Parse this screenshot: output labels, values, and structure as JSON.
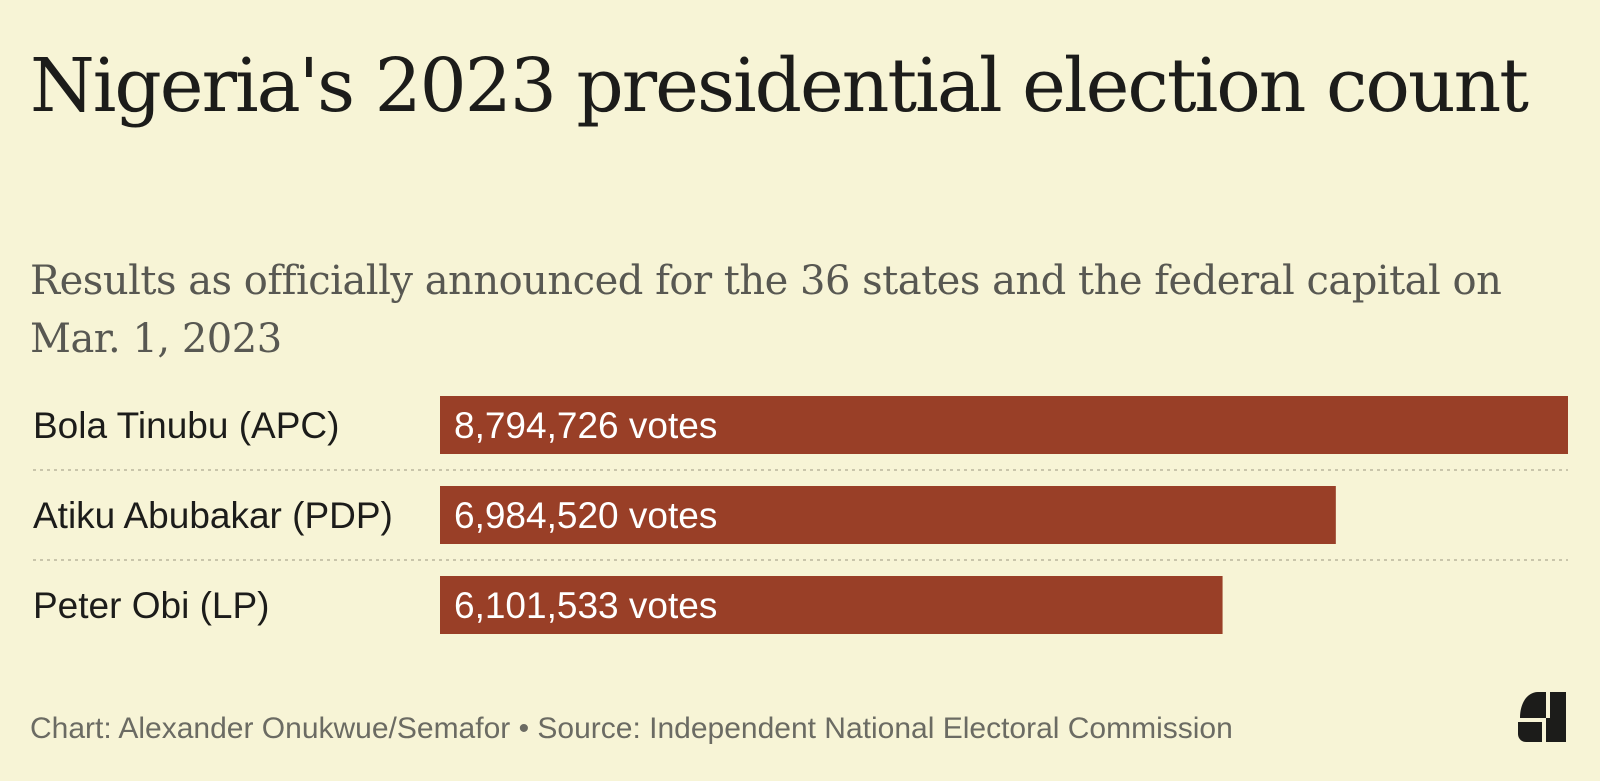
{
  "chart_data": {
    "type": "bar",
    "orientation": "horizontal",
    "title": "Nigeria's 2023 presidential election count",
    "subtitle": "Results as officially announced for the 36 states and the federal capital on Mar. 1, 2023",
    "categories": [
      "Bola Tinubu (APC)",
      "Atiku Abubakar (PDP)",
      "Peter Obi (LP)"
    ],
    "values": [
      8794726,
      6984520,
      6101533
    ],
    "value_labels": [
      "8,794,726 votes",
      "6,984,520 votes",
      "6,101,533 votes"
    ],
    "xlim": [
      0,
      8794726
    ],
    "grid": false,
    "bar_color": "#993f27"
  },
  "footer": {
    "credit": "Chart: Alexander Onukwue/Semafor • Source: Independent National Electoral Commission"
  },
  "logo": {
    "icon": "semafor-s-logo"
  }
}
